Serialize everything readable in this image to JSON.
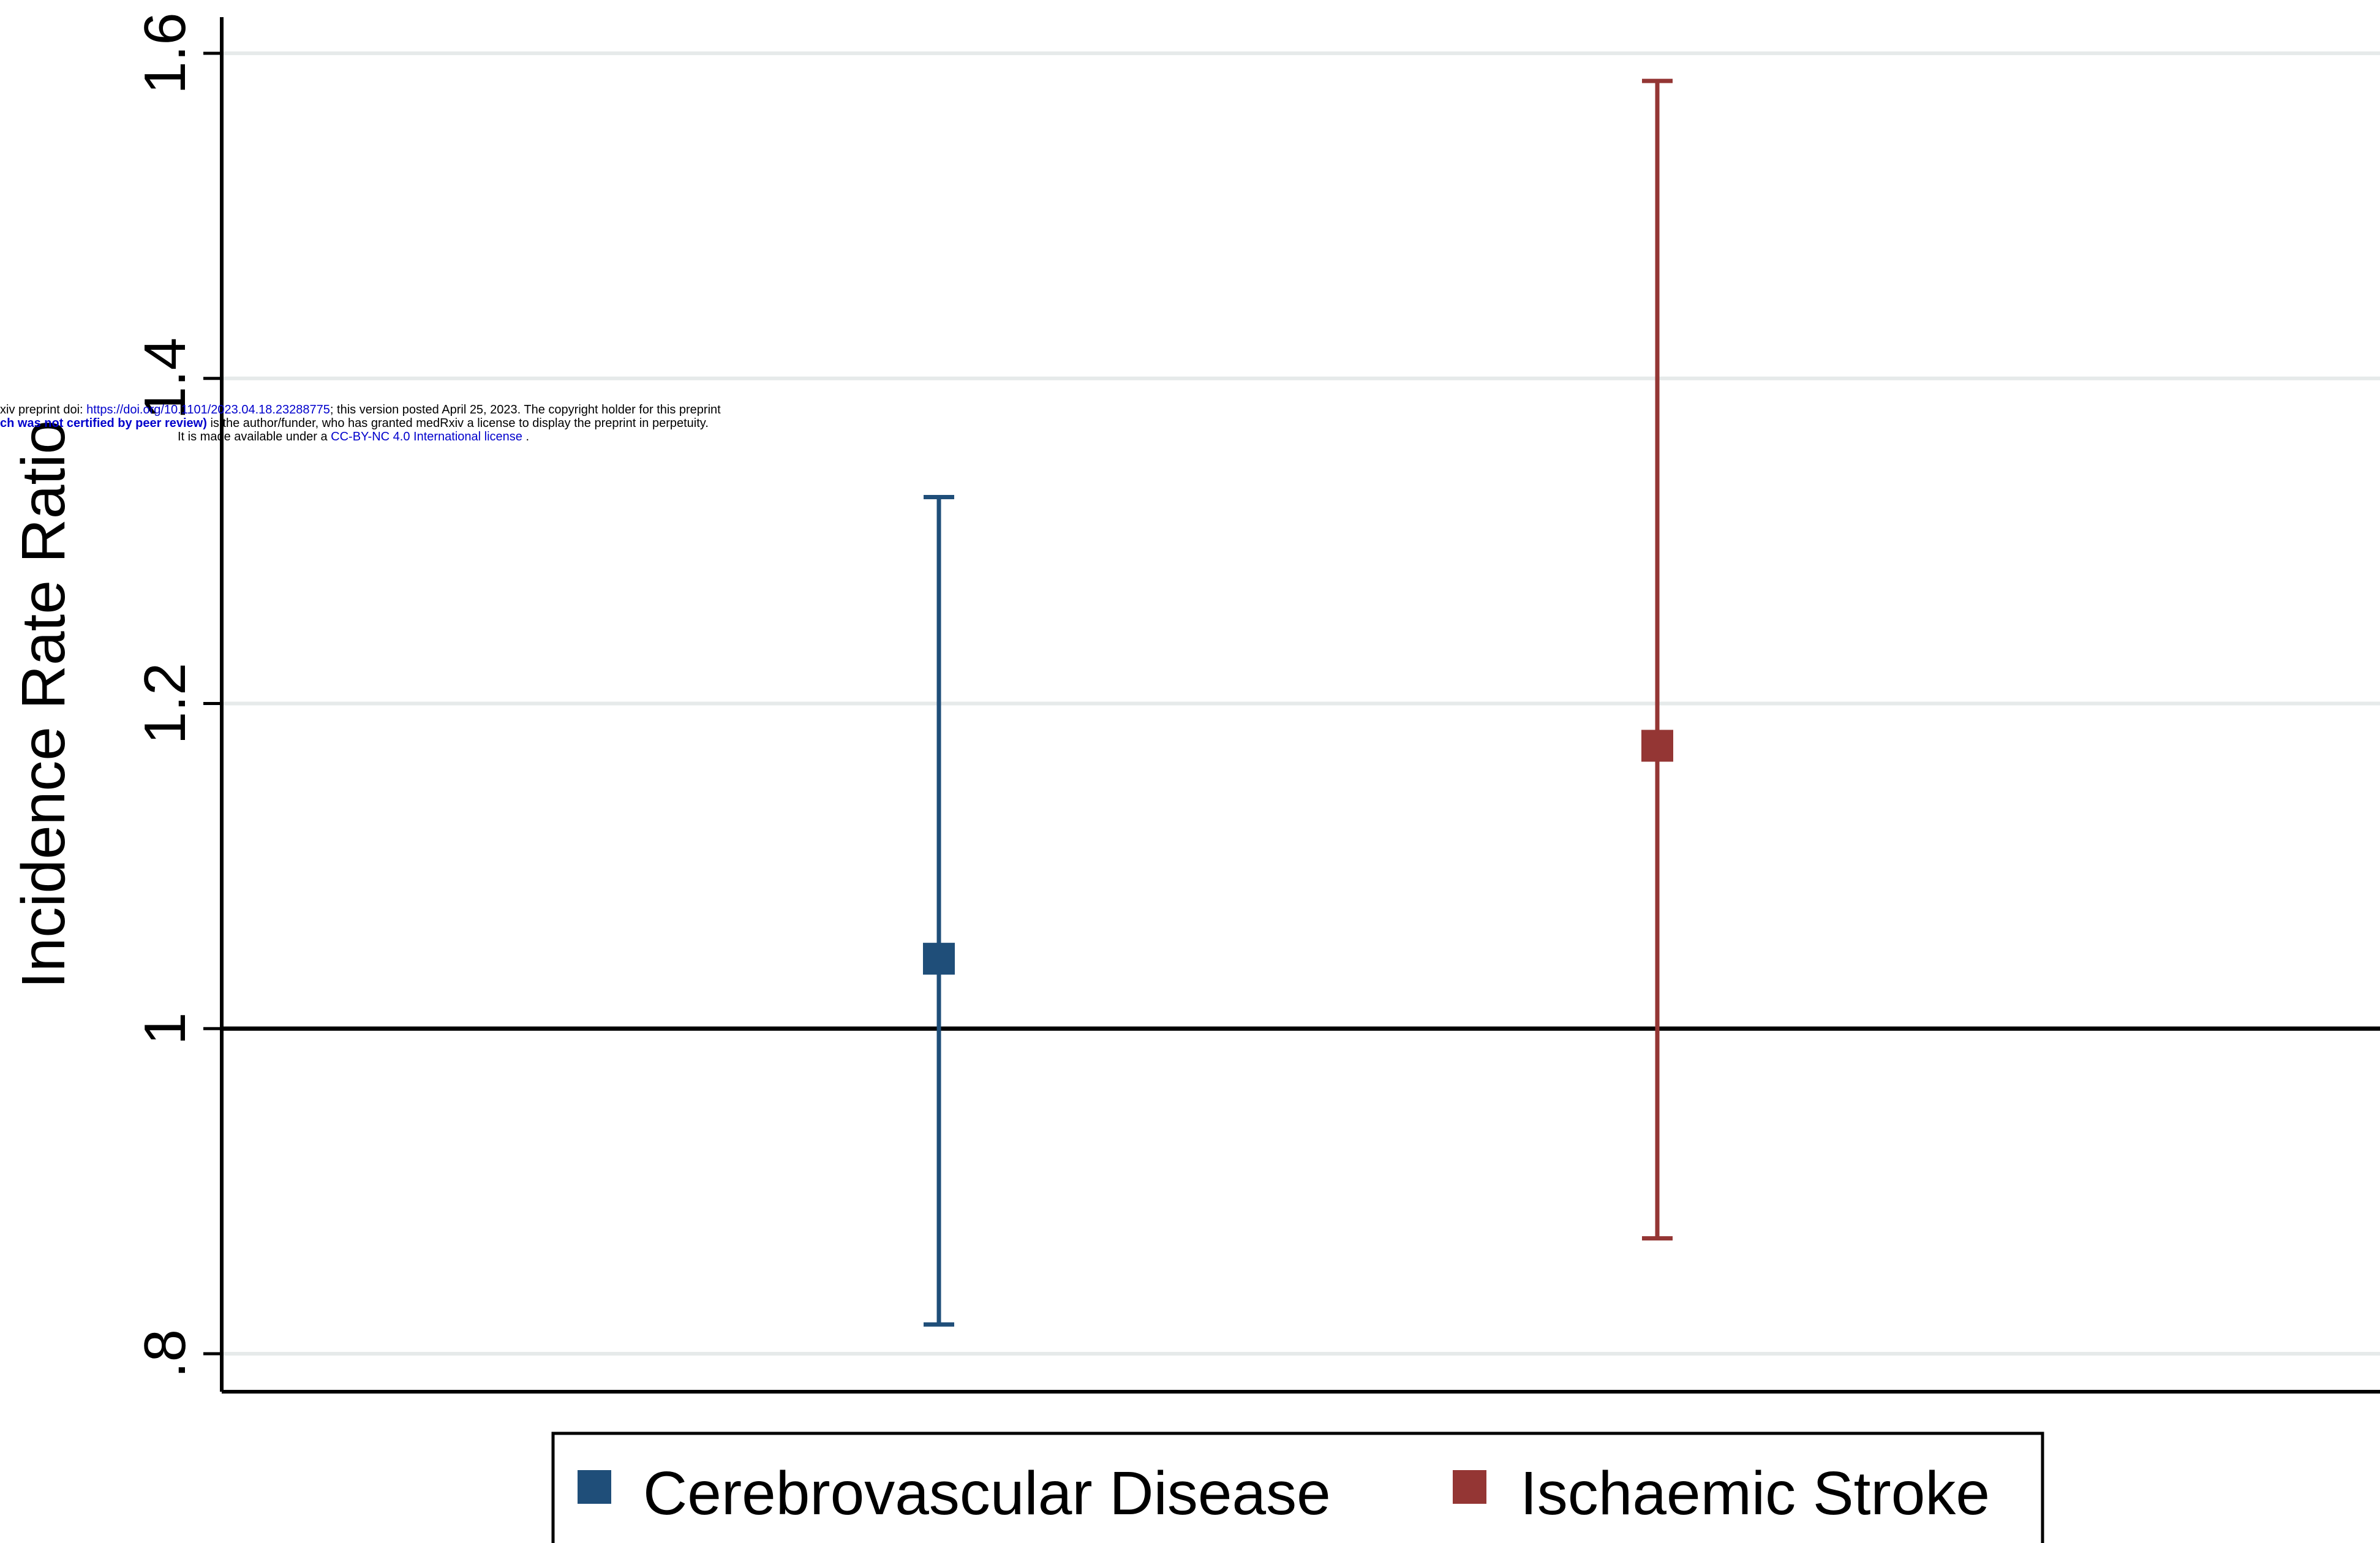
{
  "chart_data": {
    "type": "scatter",
    "subtype": "point-estimate-with-confidence-interval",
    "ylabel": "Incidence Rate Ratio",
    "xlabel": "",
    "ylim": [
      0.775,
      1.61
    ],
    "y_ticks": [
      {
        "value": 0.8,
        "label": ".8"
      },
      {
        "value": 1.0,
        "label": "1"
      },
      {
        "value": 1.2,
        "label": "1.2"
      },
      {
        "value": 1.4,
        "label": "1.4"
      },
      {
        "value": 1.6,
        "label": "1.6"
      }
    ],
    "reference_line": 1.0,
    "grid": true,
    "legend_position": "bottom",
    "series": [
      {
        "name": "Cerebrovascular Disease",
        "color": "#1f4e79",
        "estimate": 1.043,
        "lower": 0.818,
        "upper": 1.327
      },
      {
        "name": "Ischaemic Stroke",
        "color": "#943634",
        "estimate": 1.174,
        "lower": 0.871,
        "upper": 1.583
      }
    ]
  },
  "watermark": {
    "line1_prefix": "xiv preprint doi: ",
    "line1_link": "https://doi.org/10.1101/2023.04.18.23288775",
    "line1_suffix": "; this version posted April 25, 2023. The copyright holder for this preprint",
    "line2_bold": "ch was not certified by peer review)",
    "line2_suffix": " is the author/funder, who has granted medRxiv a license to display the preprint in perpetuity.",
    "line3_prefix": "It is made available under a ",
    "line3_link": "CC-BY-NC 4.0 International license",
    "line3_suffix": " ."
  }
}
